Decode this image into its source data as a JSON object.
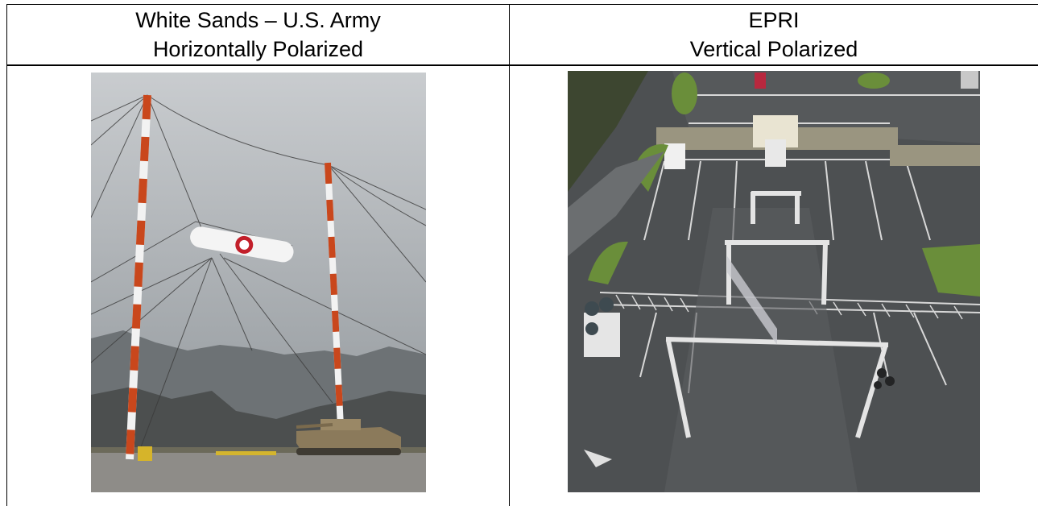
{
  "table": {
    "header": [
      [
        "White Sands – U.S. Army",
        "Horizontally Polarized"
      ],
      [
        "EPRI",
        "Vertical Polarized"
      ]
    ]
  }
}
